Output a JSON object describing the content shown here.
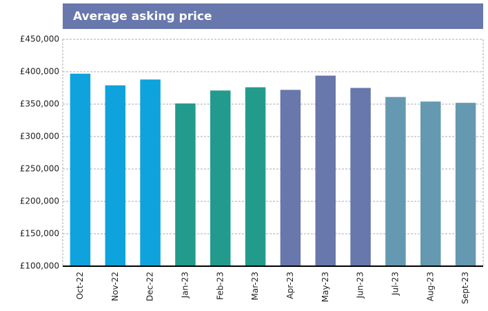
{
  "chart_data": {
    "type": "bar",
    "title": "Average asking price",
    "categories": [
      "Oct-22",
      "Nov-22",
      "Dec-22",
      "Jan-23",
      "Feb-23",
      "Mar-23",
      "Apr-23",
      "May-23",
      "Jun-23",
      "Jul-23",
      "Aug-23",
      "Sept-23"
    ],
    "values": [
      397000,
      379000,
      388000,
      351000,
      371000,
      376000,
      372000,
      394000,
      375000,
      361000,
      354000,
      352000
    ],
    "colors": [
      "#0ea3dc",
      "#0ea3dc",
      "#0ea3dc",
      "#229b8d",
      "#229b8d",
      "#229b8d",
      "#6877ac",
      "#6877ac",
      "#6877ac",
      "#6499b1",
      "#6499b1",
      "#6499b1"
    ],
    "ylim": [
      100000,
      450000
    ],
    "yticks": [
      {
        "value": 100000,
        "label": "£100,000"
      },
      {
        "value": 150000,
        "label": "£150,000"
      },
      {
        "value": 200000,
        "label": "£200,000"
      },
      {
        "value": 250000,
        "label": "£250,000"
      },
      {
        "value": 300000,
        "label": "£300,000"
      },
      {
        "value": 350000,
        "label": "£350,000"
      },
      {
        "value": 400000,
        "label": "£400,000"
      },
      {
        "value": 450000,
        "label": "£450,000"
      }
    ],
    "grid": true
  }
}
